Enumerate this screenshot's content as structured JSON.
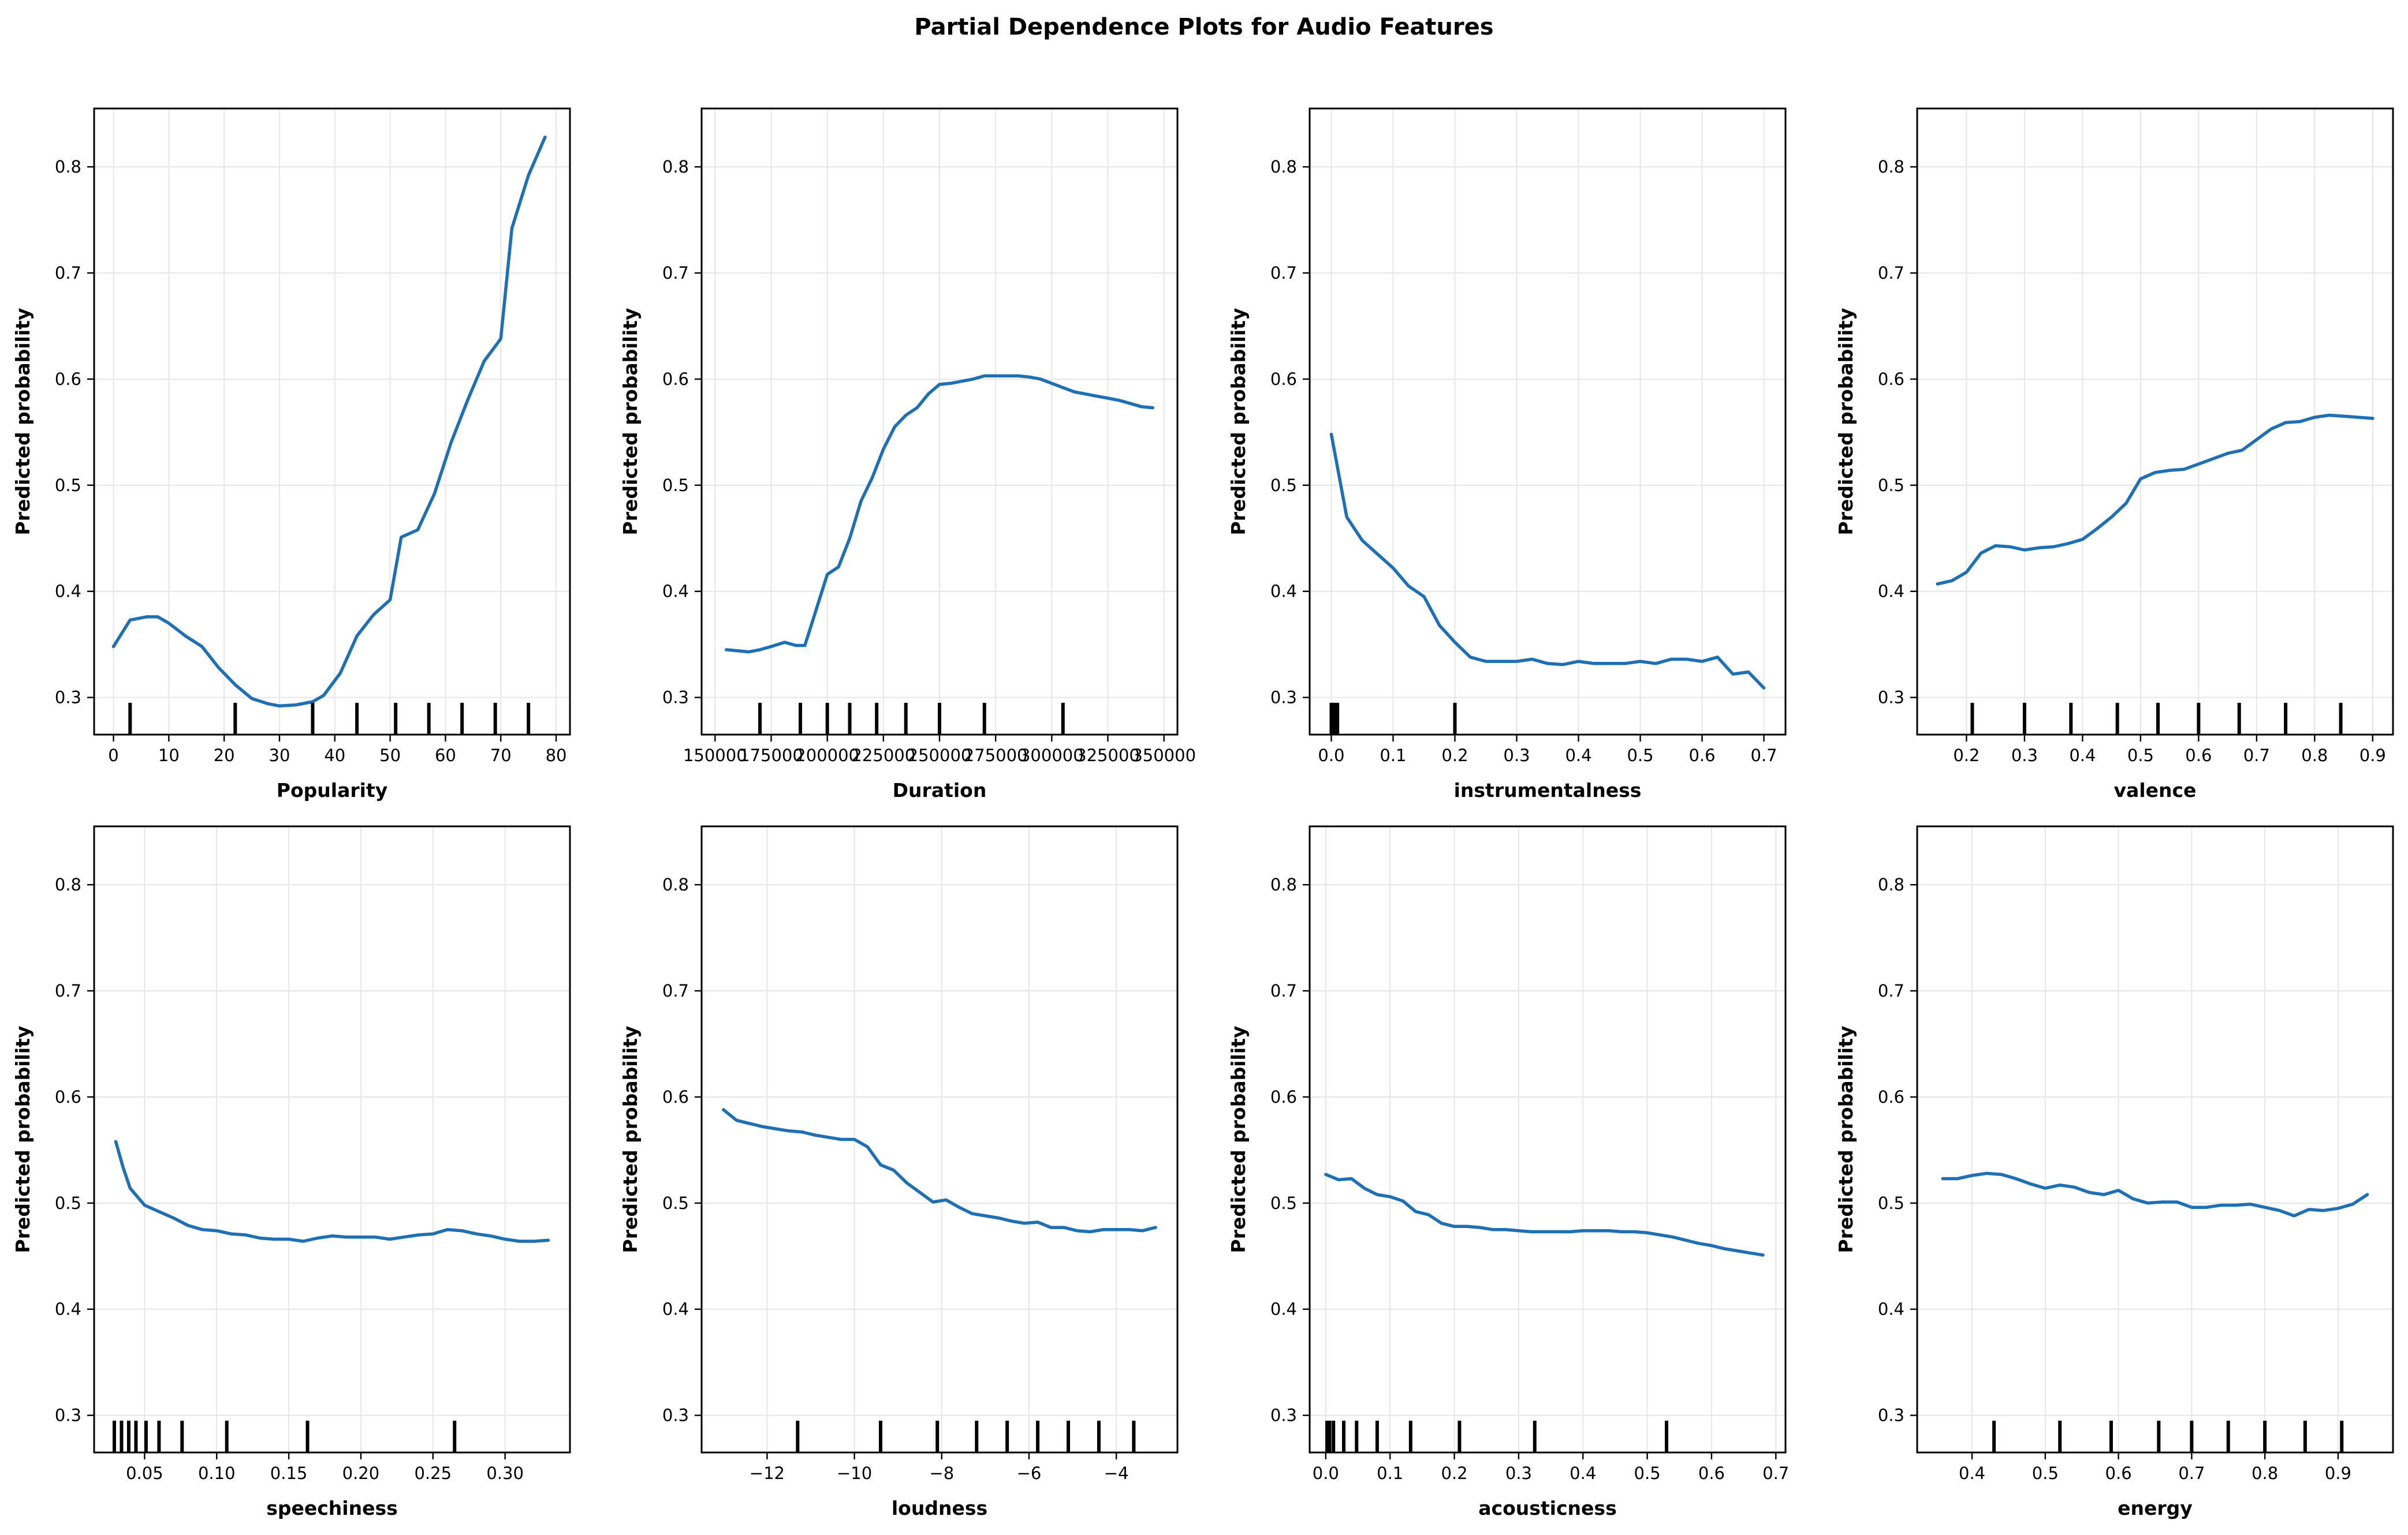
{
  "title": "Partial Dependence Plots for Audio Features",
  "colors": {
    "line": "#1f6fb4",
    "rug": "#000000",
    "grid": "#e6e6e6"
  },
  "chart_data": [
    {
      "type": "line",
      "xlabel": "Popularity",
      "ylabel": "Predicted probability",
      "xlim": [
        -3.5,
        82.5
      ],
      "ylim": [
        0.265,
        0.855
      ],
      "xticks": [
        0,
        10,
        20,
        30,
        40,
        50,
        60,
        70,
        80
      ],
      "xtick_labels": [
        "0",
        "10",
        "20",
        "30",
        "40",
        "50",
        "60",
        "70",
        "80"
      ],
      "yticks": [
        0.3,
        0.4,
        0.5,
        0.6,
        0.7,
        0.8
      ],
      "ytick_labels": [
        "0.3",
        "0.4",
        "0.5",
        "0.6",
        "0.7",
        "0.8"
      ],
      "grid": true,
      "x": [
        0,
        3,
        6,
        8,
        10,
        13,
        16,
        19,
        22,
        25,
        28,
        30,
        33,
        36,
        38,
        41,
        44,
        47,
        50,
        52,
        55,
        58,
        61,
        64,
        67,
        70,
        72,
        75,
        78
      ],
      "y": [
        0.348,
        0.373,
        0.376,
        0.376,
        0.37,
        0.358,
        0.348,
        0.328,
        0.312,
        0.299,
        0.294,
        0.292,
        0.293,
        0.296,
        0.302,
        0.323,
        0.358,
        0.378,
        0.392,
        0.451,
        0.458,
        0.492,
        0.54,
        0.58,
        0.617,
        0.638,
        0.742,
        0.792,
        0.828
      ],
      "rug": [
        3,
        22,
        36,
        44,
        51,
        57,
        63,
        69,
        75
      ]
    },
    {
      "type": "line",
      "xlabel": "Duration",
      "ylabel": "Predicted probability",
      "xlim": [
        144000,
        356000
      ],
      "ylim": [
        0.265,
        0.855
      ],
      "xticks": [
        150000,
        175000,
        200000,
        225000,
        250000,
        275000,
        300000,
        325000,
        350000
      ],
      "xtick_labels": [
        "150000",
        "175000",
        "200000",
        "225000",
        "250000",
        "275000",
        "300000",
        "325000",
        "350000"
      ],
      "yticks": [
        0.3,
        0.4,
        0.5,
        0.6,
        0.7,
        0.8
      ],
      "ytick_labels": [
        "0.3",
        "0.4",
        "0.5",
        "0.6",
        "0.7",
        "0.8"
      ],
      "grid": true,
      "x": [
        155000,
        160000,
        165000,
        170000,
        175000,
        181000,
        186000,
        190000,
        200000,
        205000,
        210000,
        215000,
        220000,
        225000,
        230000,
        235000,
        240000,
        245000,
        250000,
        255000,
        260000,
        265000,
        270000,
        275000,
        280000,
        285000,
        290000,
        295000,
        300000,
        305000,
        310000,
        315000,
        320000,
        325000,
        330000,
        335000,
        340000,
        345000
      ],
      "y": [
        0.345,
        0.344,
        0.343,
        0.345,
        0.348,
        0.352,
        0.349,
        0.349,
        0.416,
        0.423,
        0.45,
        0.485,
        0.507,
        0.534,
        0.555,
        0.566,
        0.573,
        0.586,
        0.595,
        0.596,
        0.598,
        0.6,
        0.603,
        0.603,
        0.603,
        0.603,
        0.602,
        0.6,
        0.596,
        0.592,
        0.588,
        0.586,
        0.584,
        0.582,
        0.58,
        0.577,
        0.574,
        0.573
      ],
      "rug": [
        170000,
        188000,
        200000,
        210000,
        222000,
        235000,
        250000,
        270000,
        305000
      ]
    },
    {
      "type": "line",
      "xlabel": "instrumentalness",
      "ylabel": "Predicted probability",
      "xlim": [
        -0.035,
        0.735
      ],
      "ylim": [
        0.265,
        0.855
      ],
      "xticks": [
        0.0,
        0.1,
        0.2,
        0.3,
        0.4,
        0.5,
        0.6,
        0.7
      ],
      "xtick_labels": [
        "0.0",
        "0.1",
        "0.2",
        "0.3",
        "0.4",
        "0.5",
        "0.6",
        "0.7"
      ],
      "yticks": [
        0.3,
        0.4,
        0.5,
        0.6,
        0.7,
        0.8
      ],
      "ytick_labels": [
        "0.3",
        "0.4",
        "0.5",
        "0.6",
        "0.7",
        "0.8"
      ],
      "grid": true,
      "x": [
        0.0,
        0.025,
        0.05,
        0.075,
        0.1,
        0.125,
        0.15,
        0.175,
        0.2,
        0.225,
        0.25,
        0.275,
        0.3,
        0.325,
        0.35,
        0.375,
        0.4,
        0.425,
        0.45,
        0.475,
        0.5,
        0.525,
        0.55,
        0.575,
        0.6,
        0.625,
        0.65,
        0.675,
        0.7
      ],
      "y": [
        0.548,
        0.47,
        0.448,
        0.435,
        0.422,
        0.405,
        0.395,
        0.368,
        0.352,
        0.338,
        0.334,
        0.334,
        0.334,
        0.336,
        0.332,
        0.331,
        0.334,
        0.332,
        0.332,
        0.332,
        0.334,
        0.332,
        0.336,
        0.336,
        0.334,
        0.338,
        0.322,
        0.324,
        0.309
      ],
      "rug": [
        0.0,
        0.003,
        0.006,
        0.01,
        0.2
      ]
    },
    {
      "type": "line",
      "xlabel": "valence",
      "ylabel": "Predicted probability",
      "xlim": [
        0.115,
        0.935
      ],
      "ylim": [
        0.265,
        0.855
      ],
      "xticks": [
        0.2,
        0.3,
        0.4,
        0.5,
        0.6,
        0.7,
        0.8,
        0.9
      ],
      "xtick_labels": [
        "0.2",
        "0.3",
        "0.4",
        "0.5",
        "0.6",
        "0.7",
        "0.8",
        "0.9"
      ],
      "yticks": [
        0.3,
        0.4,
        0.5,
        0.6,
        0.7,
        0.8
      ],
      "ytick_labels": [
        "0.3",
        "0.4",
        "0.5",
        "0.6",
        "0.7",
        "0.8"
      ],
      "grid": true,
      "x": [
        0.15,
        0.175,
        0.2,
        0.225,
        0.25,
        0.275,
        0.3,
        0.325,
        0.35,
        0.375,
        0.4,
        0.425,
        0.45,
        0.475,
        0.5,
        0.525,
        0.55,
        0.575,
        0.6,
        0.625,
        0.65,
        0.675,
        0.7,
        0.725,
        0.75,
        0.775,
        0.8,
        0.825,
        0.85,
        0.875,
        0.9
      ],
      "y": [
        0.407,
        0.41,
        0.418,
        0.436,
        0.443,
        0.442,
        0.439,
        0.441,
        0.442,
        0.445,
        0.449,
        0.459,
        0.47,
        0.483,
        0.506,
        0.512,
        0.514,
        0.515,
        0.52,
        0.525,
        0.53,
        0.533,
        0.543,
        0.553,
        0.559,
        0.56,
        0.564,
        0.566,
        0.565,
        0.564,
        0.563
      ],
      "rug": [
        0.21,
        0.3,
        0.38,
        0.46,
        0.53,
        0.6,
        0.67,
        0.75,
        0.845
      ]
    },
    {
      "type": "line",
      "xlabel": "speechiness",
      "ylabel": "Predicted probability",
      "xlim": [
        0.015,
        0.345
      ],
      "ylim": [
        0.265,
        0.855
      ],
      "xticks": [
        0.05,
        0.1,
        0.15,
        0.2,
        0.25,
        0.3
      ],
      "xtick_labels": [
        "0.05",
        "0.10",
        "0.15",
        "0.20",
        "0.25",
        "0.30"
      ],
      "yticks": [
        0.3,
        0.4,
        0.5,
        0.6,
        0.7,
        0.8
      ],
      "ytick_labels": [
        "0.3",
        "0.4",
        "0.5",
        "0.6",
        "0.7",
        "0.8"
      ],
      "grid": true,
      "x": [
        0.03,
        0.035,
        0.04,
        0.045,
        0.05,
        0.06,
        0.07,
        0.08,
        0.09,
        0.1,
        0.11,
        0.12,
        0.13,
        0.14,
        0.15,
        0.16,
        0.17,
        0.18,
        0.19,
        0.2,
        0.21,
        0.22,
        0.23,
        0.24,
        0.25,
        0.26,
        0.27,
        0.28,
        0.29,
        0.3,
        0.31,
        0.32,
        0.33
      ],
      "y": [
        0.558,
        0.534,
        0.514,
        0.506,
        0.498,
        0.492,
        0.486,
        0.479,
        0.475,
        0.474,
        0.471,
        0.47,
        0.467,
        0.466,
        0.466,
        0.464,
        0.467,
        0.469,
        0.468,
        0.468,
        0.468,
        0.466,
        0.468,
        0.47,
        0.471,
        0.475,
        0.474,
        0.471,
        0.469,
        0.466,
        0.464,
        0.464,
        0.465
      ],
      "rug": [
        0.029,
        0.034,
        0.039,
        0.044,
        0.051,
        0.06,
        0.076,
        0.107,
        0.163,
        0.265
      ]
    },
    {
      "type": "line",
      "xlabel": "loudness",
      "ylabel": "Predicted probability",
      "xlim": [
        -13.5,
        -2.6
      ],
      "ylim": [
        0.265,
        0.855
      ],
      "xticks": [
        -12,
        -10,
        -8,
        -6,
        -4
      ],
      "xtick_labels": [
        "−12",
        "−10",
        "−8",
        "−6",
        "−4"
      ],
      "yticks": [
        0.3,
        0.4,
        0.5,
        0.6,
        0.7,
        0.8
      ],
      "ytick_labels": [
        "0.3",
        "0.4",
        "0.5",
        "0.6",
        "0.7",
        "0.8"
      ],
      "grid": true,
      "x": [
        -13.0,
        -12.7,
        -12.4,
        -12.1,
        -11.8,
        -11.5,
        -11.2,
        -10.9,
        -10.6,
        -10.3,
        -10.0,
        -9.7,
        -9.4,
        -9.1,
        -8.8,
        -8.5,
        -8.2,
        -7.9,
        -7.6,
        -7.3,
        -7.0,
        -6.7,
        -6.4,
        -6.1,
        -5.8,
        -5.5,
        -5.2,
        -4.9,
        -4.6,
        -4.3,
        -4.0,
        -3.7,
        -3.4,
        -3.1
      ],
      "y": [
        0.588,
        0.578,
        0.575,
        0.572,
        0.57,
        0.568,
        0.567,
        0.564,
        0.562,
        0.56,
        0.56,
        0.553,
        0.536,
        0.531,
        0.519,
        0.51,
        0.501,
        0.503,
        0.496,
        0.49,
        0.488,
        0.486,
        0.483,
        0.481,
        0.482,
        0.477,
        0.477,
        0.474,
        0.473,
        0.475,
        0.475,
        0.475,
        0.474,
        0.477
      ],
      "rug": [
        -11.3,
        -9.4,
        -8.1,
        -7.2,
        -6.5,
        -5.8,
        -5.1,
        -4.4,
        -3.6
      ]
    },
    {
      "type": "line",
      "xlabel": "acousticness",
      "ylabel": "Predicted probability",
      "xlim": [
        -0.025,
        0.715
      ],
      "ylim": [
        0.265,
        0.855
      ],
      "xticks": [
        0.0,
        0.1,
        0.2,
        0.3,
        0.4,
        0.5,
        0.6,
        0.7
      ],
      "xtick_labels": [
        "0.0",
        "0.1",
        "0.2",
        "0.3",
        "0.4",
        "0.5",
        "0.6",
        "0.7"
      ],
      "yticks": [
        0.3,
        0.4,
        0.5,
        0.6,
        0.7,
        0.8
      ],
      "ytick_labels": [
        "0.3",
        "0.4",
        "0.5",
        "0.6",
        "0.7",
        "0.8"
      ],
      "grid": true,
      "x": [
        0.0,
        0.02,
        0.04,
        0.06,
        0.08,
        0.1,
        0.12,
        0.14,
        0.16,
        0.18,
        0.2,
        0.22,
        0.24,
        0.26,
        0.28,
        0.3,
        0.32,
        0.34,
        0.36,
        0.38,
        0.4,
        0.42,
        0.44,
        0.46,
        0.48,
        0.5,
        0.52,
        0.54,
        0.56,
        0.58,
        0.6,
        0.62,
        0.64,
        0.66,
        0.68
      ],
      "y": [
        0.527,
        0.522,
        0.523,
        0.514,
        0.508,
        0.506,
        0.502,
        0.492,
        0.489,
        0.481,
        0.478,
        0.478,
        0.477,
        0.475,
        0.475,
        0.474,
        0.473,
        0.473,
        0.473,
        0.473,
        0.474,
        0.474,
        0.474,
        0.473,
        0.473,
        0.472,
        0.47,
        0.468,
        0.465,
        0.462,
        0.46,
        0.457,
        0.455,
        0.453,
        0.451
      ],
      "rug": [
        0.002,
        0.006,
        0.012,
        0.028,
        0.048,
        0.08,
        0.132,
        0.208,
        0.325,
        0.53
      ]
    },
    {
      "type": "line",
      "xlabel": "energy",
      "ylabel": "Predicted probability",
      "xlim": [
        0.325,
        0.975
      ],
      "ylim": [
        0.265,
        0.855
      ],
      "xticks": [
        0.4,
        0.5,
        0.6,
        0.7,
        0.8,
        0.9
      ],
      "xtick_labels": [
        "0.4",
        "0.5",
        "0.6",
        "0.7",
        "0.8",
        "0.9"
      ],
      "yticks": [
        0.3,
        0.4,
        0.5,
        0.6,
        0.7,
        0.8
      ],
      "ytick_labels": [
        "0.3",
        "0.4",
        "0.5",
        "0.6",
        "0.7",
        "0.8"
      ],
      "grid": true,
      "x": [
        0.36,
        0.38,
        0.4,
        0.42,
        0.44,
        0.46,
        0.48,
        0.5,
        0.52,
        0.54,
        0.56,
        0.58,
        0.6,
        0.62,
        0.64,
        0.66,
        0.68,
        0.7,
        0.72,
        0.74,
        0.76,
        0.78,
        0.8,
        0.82,
        0.84,
        0.86,
        0.88,
        0.9,
        0.92,
        0.94
      ],
      "y": [
        0.523,
        0.523,
        0.526,
        0.528,
        0.527,
        0.523,
        0.518,
        0.514,
        0.517,
        0.515,
        0.51,
        0.508,
        0.512,
        0.504,
        0.5,
        0.501,
        0.501,
        0.496,
        0.496,
        0.498,
        0.498,
        0.499,
        0.496,
        0.493,
        0.488,
        0.494,
        0.493,
        0.495,
        0.499,
        0.508
      ],
      "rug": [
        0.43,
        0.52,
        0.59,
        0.655,
        0.7,
        0.75,
        0.8,
        0.855,
        0.905
      ]
    }
  ]
}
